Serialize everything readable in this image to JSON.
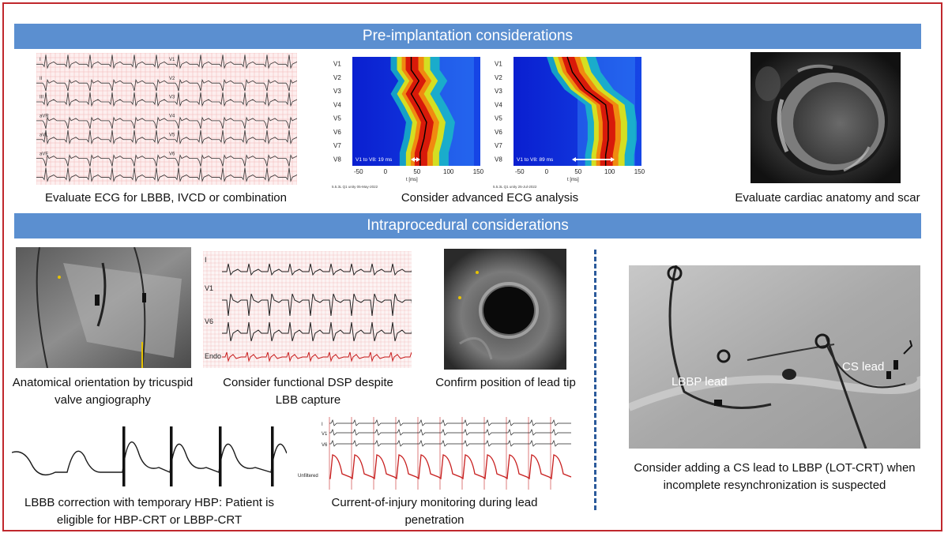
{
  "sections": {
    "pre_title": "Pre-implantation considerations",
    "intra_title": "Intraprocedural considerations"
  },
  "pre": {
    "ecg_caption": "Evaluate ECG for LBBB, IVCD or combination",
    "advanced_caption": "Consider advanced ECG analysis",
    "anatomy_caption": "Evaluate cardiac anatomy and scar",
    "ecg_leads": [
      "I",
      "II",
      "III",
      "aVR",
      "aVL",
      "aVF",
      "V1",
      "V2",
      "V3",
      "V4",
      "V5",
      "V6"
    ],
    "heatmap_leads": [
      "V1",
      "V2",
      "V3",
      "V4",
      "V5",
      "V6",
      "V7",
      "V8"
    ],
    "heatmap_ticks": [
      "-50",
      "0",
      "50",
      "100",
      "150"
    ],
    "heatmap_axis": "t [ms]",
    "heatmap1_note": "V1 to V8: 19 ms",
    "heatmap2_note": "V1 to V8: 89 ms",
    "heatmap1_footer": "5.5.3L Q1 unity 05-May-2022",
    "heatmap2_footer": "5.5.3L Q1 unity 25-Jul-2022"
  },
  "intra": {
    "angio_caption": "Anatomical orientation by tricuspid valve angiography",
    "dsp_caption": "Consider functional DSP despite LBB capture",
    "dsp_leads": [
      "I",
      "V1",
      "V6",
      "Endo"
    ],
    "echo_caption": "Confirm position of lead tip",
    "hbp_caption": "LBBB correction with temporary HBP: Patient is eligible for HBP-CRT or LBBP-CRT",
    "coi_caption": "Current-of-injury monitoring during lead penetration",
    "coi_leads": [
      "I",
      "V1",
      "V6",
      "Unfiltered"
    ],
    "lot_caption": "Consider adding a CS lead to LBBP (LOT-CRT) when incomplete resynchronization is suspected",
    "lbbp_label": "LBBP lead",
    "cs_label": "CS lead"
  },
  "colors": {
    "frame": "#c0282d",
    "banner": "#5b8fd0",
    "divider": "#2b5a9b",
    "ecg_grid": "#f2b7b7",
    "endo_trace": "#c81e1e"
  }
}
